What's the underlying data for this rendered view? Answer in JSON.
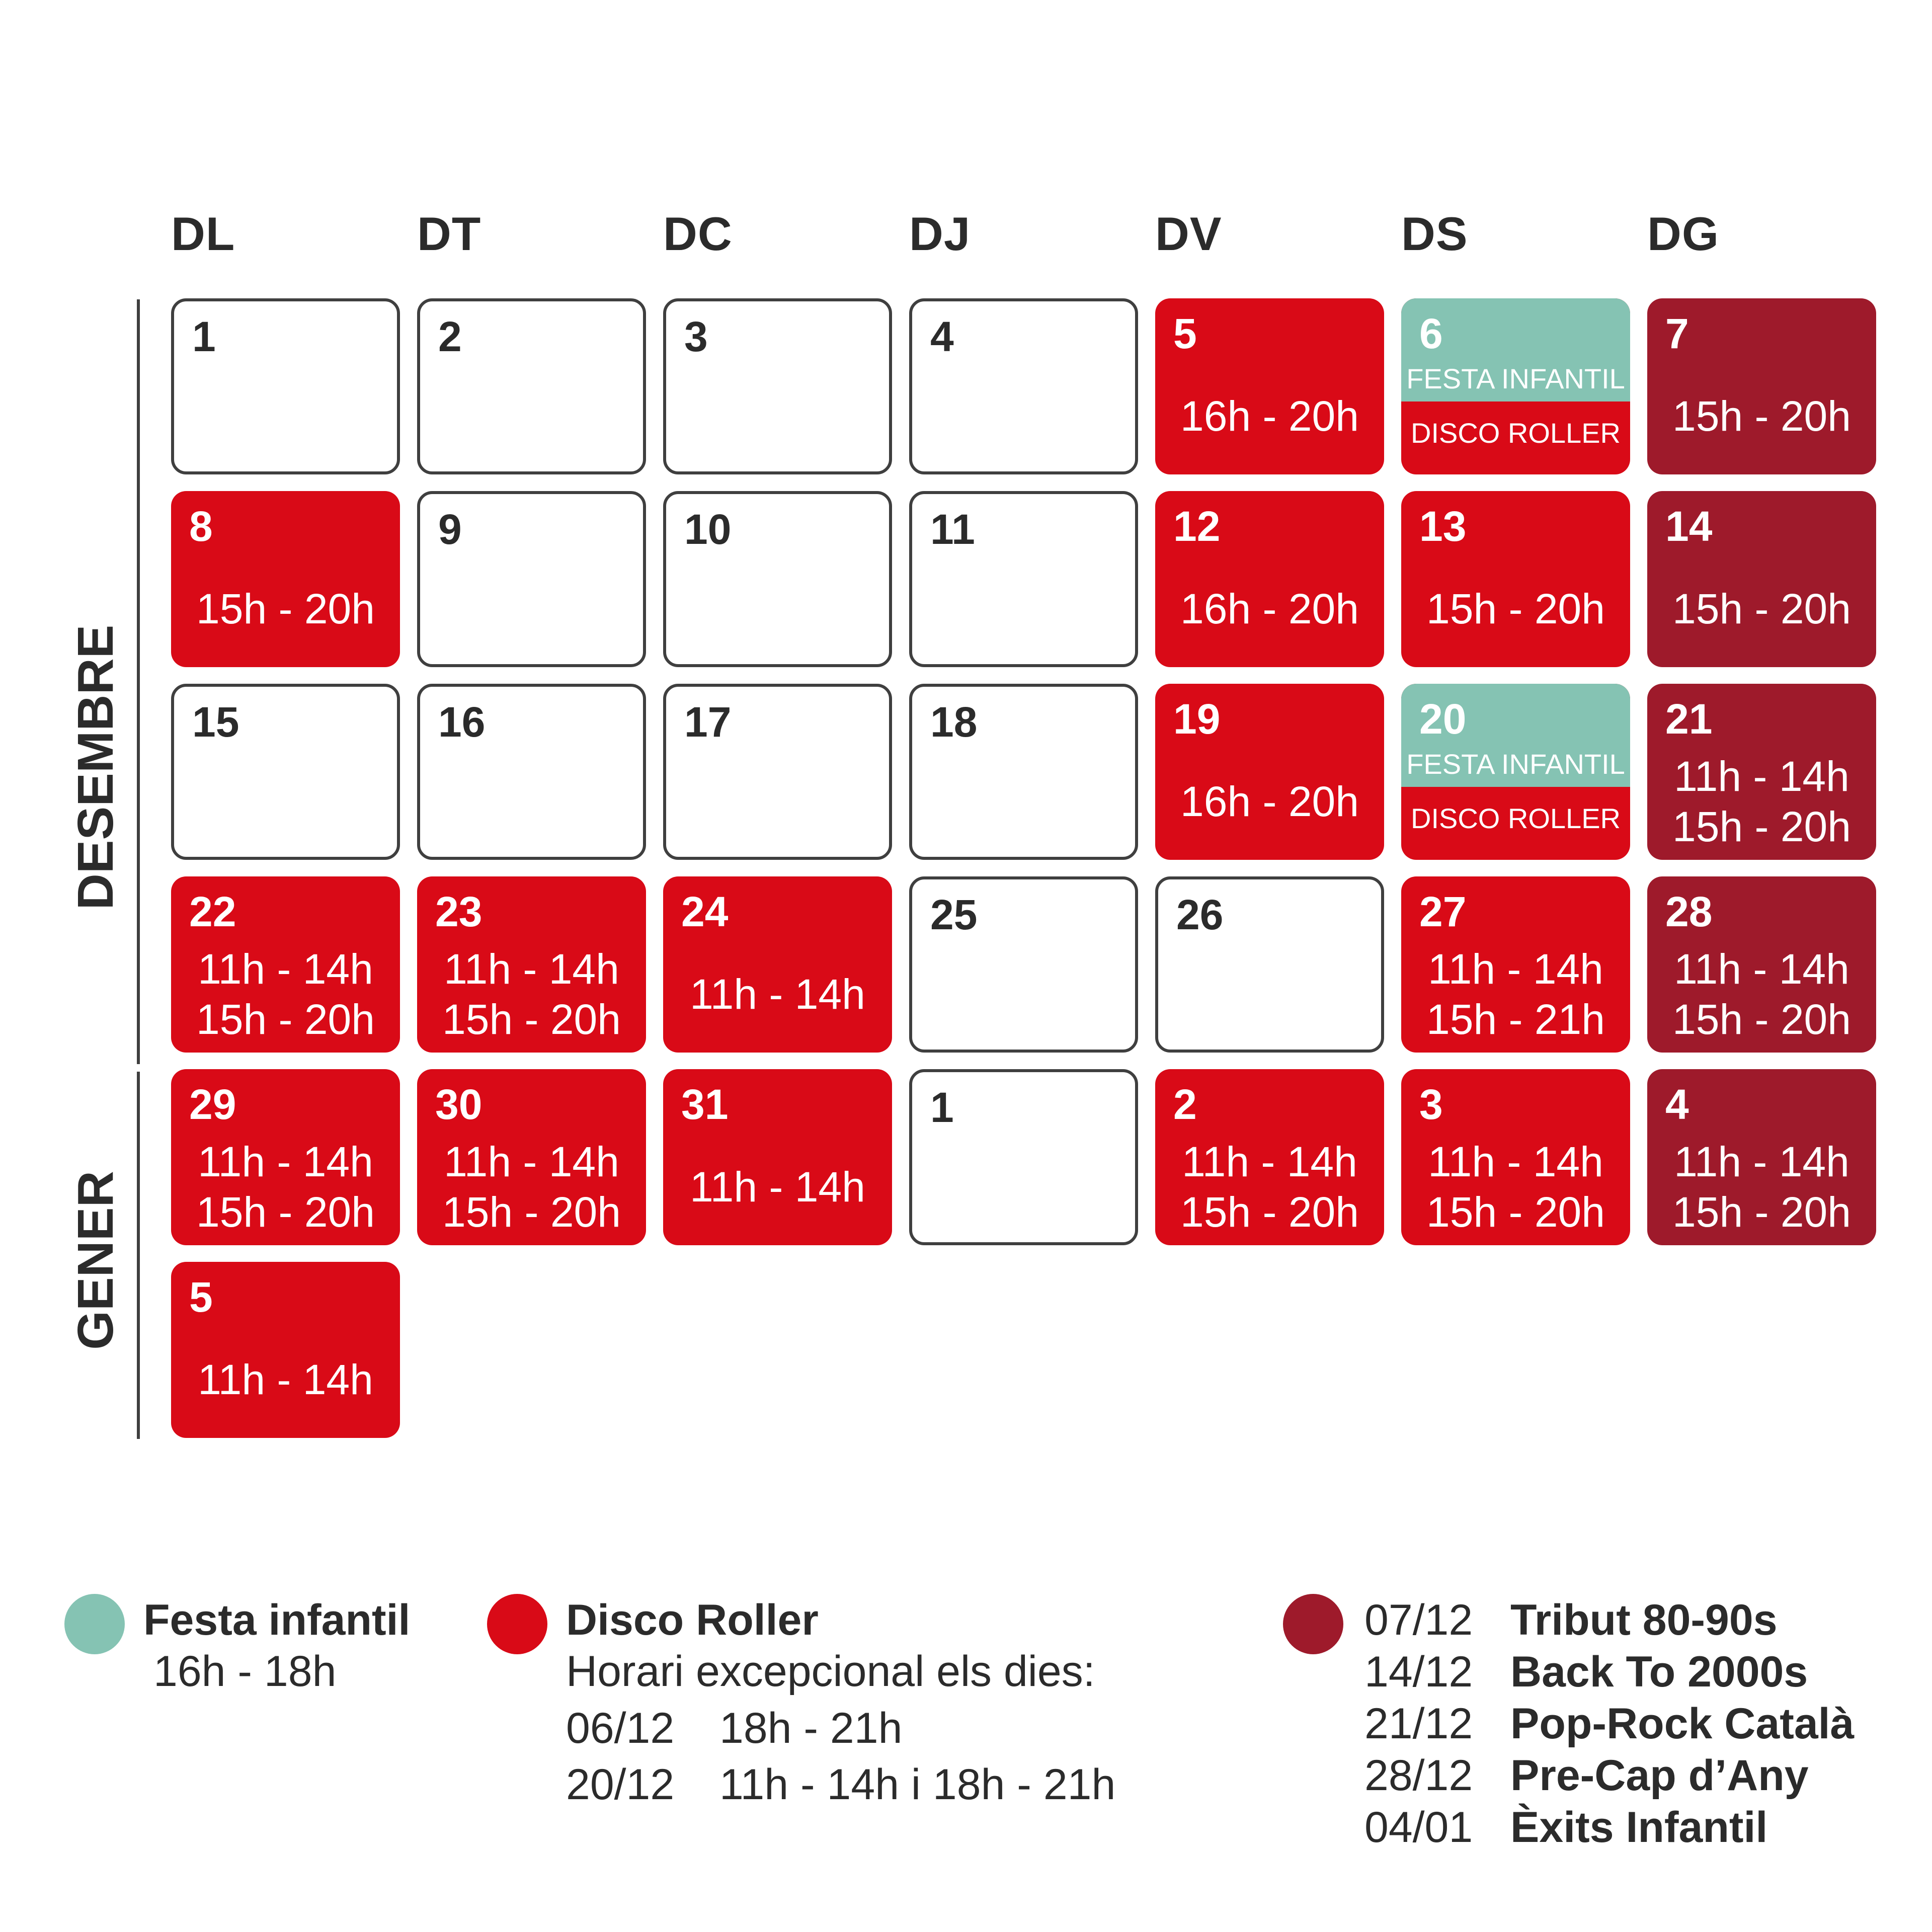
{
  "weekdays": [
    "DL",
    "DT",
    "DC",
    "DJ",
    "DV",
    "DS",
    "DG"
  ],
  "months": [
    "DESEMBRE",
    "GENER"
  ],
  "colors": {
    "empty_border": "#3f3f3f",
    "disco_roller": "#d90a17",
    "sunday_event": "#9e1a2b",
    "festa_infantil": "#85c3b3"
  },
  "days": [
    {
      "day": "1",
      "type": "empty",
      "times": []
    },
    {
      "day": "2",
      "type": "empty",
      "times": []
    },
    {
      "day": "3",
      "type": "empty",
      "times": []
    },
    {
      "day": "4",
      "type": "empty",
      "times": []
    },
    {
      "day": "5",
      "type": "red",
      "times": [
        "16h - 20h"
      ]
    },
    {
      "day": "6",
      "type": "split",
      "top_label": "FESTA INFANTIL",
      "bottom_label": "DISCO ROLLER",
      "times": []
    },
    {
      "day": "7",
      "type": "dark",
      "times": [
        "15h - 20h"
      ]
    },
    {
      "day": "8",
      "type": "red",
      "times": [
        "15h - 20h"
      ]
    },
    {
      "day": "9",
      "type": "empty",
      "times": []
    },
    {
      "day": "10",
      "type": "empty",
      "times": []
    },
    {
      "day": "11",
      "type": "empty",
      "times": []
    },
    {
      "day": "12",
      "type": "red",
      "times": [
        "16h - 20h"
      ]
    },
    {
      "day": "13",
      "type": "red",
      "times": [
        "15h - 20h"
      ]
    },
    {
      "day": "14",
      "type": "dark",
      "times": [
        "15h - 20h"
      ]
    },
    {
      "day": "15",
      "type": "empty",
      "times": []
    },
    {
      "day": "16",
      "type": "empty",
      "times": []
    },
    {
      "day": "17",
      "type": "empty",
      "times": []
    },
    {
      "day": "18",
      "type": "empty",
      "times": []
    },
    {
      "day": "19",
      "type": "red",
      "times": [
        "16h - 20h"
      ]
    },
    {
      "day": "20",
      "type": "split",
      "top_label": "FESTA INFANTIL",
      "bottom_label": "DISCO ROLLER",
      "times": []
    },
    {
      "day": "21",
      "type": "dark",
      "times": [
        "11h - 14h",
        "15h - 20h"
      ]
    },
    {
      "day": "22",
      "type": "red",
      "times": [
        "11h - 14h",
        "15h - 20h"
      ]
    },
    {
      "day": "23",
      "type": "red",
      "times": [
        "11h - 14h",
        "15h - 20h"
      ]
    },
    {
      "day": "24",
      "type": "red",
      "times": [
        "11h - 14h"
      ]
    },
    {
      "day": "25",
      "type": "empty",
      "times": []
    },
    {
      "day": "26",
      "type": "empty",
      "times": []
    },
    {
      "day": "27",
      "type": "red",
      "times": [
        "11h - 14h",
        "15h - 21h"
      ]
    },
    {
      "day": "28",
      "type": "dark",
      "times": [
        "11h - 14h",
        "15h - 20h"
      ]
    },
    {
      "day": "29",
      "type": "red",
      "times": [
        "11h - 14h",
        "15h - 20h"
      ]
    },
    {
      "day": "30",
      "type": "red",
      "times": [
        "11h - 14h",
        "15h - 20h"
      ]
    },
    {
      "day": "31",
      "type": "red",
      "times": [
        "11h - 14h"
      ]
    },
    {
      "day": "1",
      "type": "empty",
      "times": []
    },
    {
      "day": "2",
      "type": "red",
      "times": [
        "11h - 14h",
        "15h - 20h"
      ]
    },
    {
      "day": "3",
      "type": "red",
      "times": [
        "11h - 14h",
        "15h - 20h"
      ]
    },
    {
      "day": "4",
      "type": "dark",
      "times": [
        "11h - 14h",
        "15h - 20h"
      ]
    },
    {
      "day": "5",
      "type": "red",
      "times": [
        "11h - 14h"
      ]
    }
  ],
  "legend": {
    "festa": {
      "title": "Festa infantil",
      "hours": "16h - 18h"
    },
    "disco": {
      "title": "Disco Roller",
      "subtitle": "Horari excepcional els dies:",
      "exceptions": [
        {
          "date": "06/12",
          "hours": "18h - 21h"
        },
        {
          "date": "20/12",
          "hours": "11h - 14h i 18h - 21h"
        }
      ]
    },
    "events": [
      {
        "date": "07/12",
        "name": "Tribut 80-90s"
      },
      {
        "date": "14/12",
        "name": "Back To 2000s"
      },
      {
        "date": "21/12",
        "name": "Pop-Rock Català"
      },
      {
        "date": "28/12",
        "name": "Pre-Cap d’Any"
      },
      {
        "date": "04/01",
        "name": "Èxits Infantil"
      }
    ]
  }
}
